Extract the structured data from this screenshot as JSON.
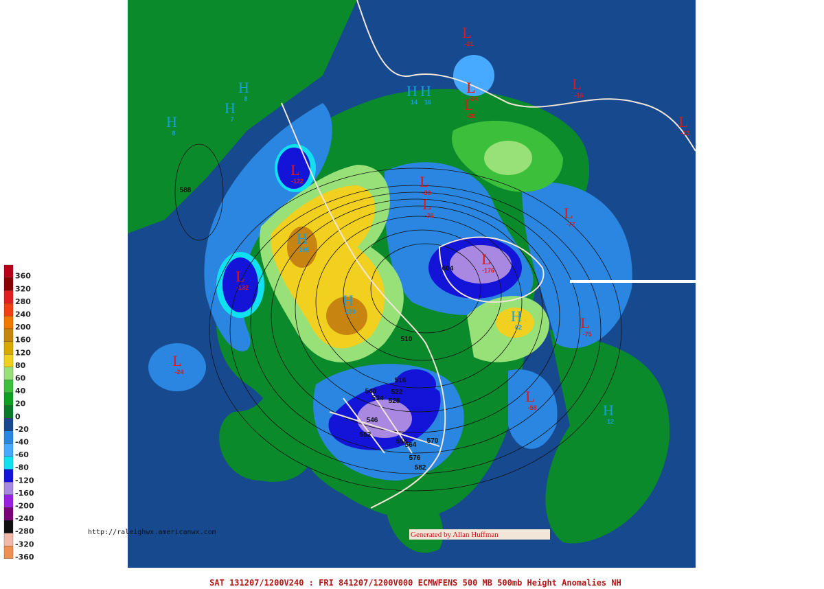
{
  "title": "SAT 131207/1200V240 : FRI 841207/1200V000  ECMWFENS  500 MB 500mb Height Anomalies NH",
  "source_url": "http://raleighwx.americanwx.com",
  "credit": "Generated by Allan Huffman",
  "legend": {
    "items": [
      {
        "value": 360,
        "color": "#b80018"
      },
      {
        "value": 320,
        "color": "#880000"
      },
      {
        "value": 280,
        "color": "#e02020"
      },
      {
        "value": 240,
        "color": "#f04010"
      },
      {
        "value": 200,
        "color": "#f07a00"
      },
      {
        "value": 160,
        "color": "#c88410"
      },
      {
        "value": 120,
        "color": "#d8a800"
      },
      {
        "value": 80,
        "color": "#f2d020"
      },
      {
        "value": 60,
        "color": "#98e078"
      },
      {
        "value": 40,
        "color": "#3cc03c"
      },
      {
        "value": 20,
        "color": "#10a020"
      },
      {
        "value": 0,
        "color": "#0a7a2a"
      },
      {
        "value": -20,
        "color": "#17498e"
      },
      {
        "value": -40,
        "color": "#2a86e0"
      },
      {
        "value": -60,
        "color": "#48aaff"
      },
      {
        "value": -80,
        "color": "#10e0f0"
      },
      {
        "value": -120,
        "color": "#1414d8"
      },
      {
        "value": -160,
        "color": "#a888e0"
      },
      {
        "value": -200,
        "color": "#9a20e0"
      },
      {
        "value": -240,
        "color": "#7a007a"
      },
      {
        "value": -280,
        "color": "#101010"
      },
      {
        "value": -320,
        "color": "#f2b8a8"
      },
      {
        "value": -360,
        "color": "#f09050"
      }
    ]
  },
  "centers": [
    {
      "type": "L",
      "value": -21
    },
    {
      "type": "L",
      "value": -34
    },
    {
      "type": "L",
      "value": -20
    },
    {
      "type": "L",
      "value": -16
    },
    {
      "type": "L",
      "value": -13
    },
    {
      "type": "L",
      "value": -122
    },
    {
      "type": "L",
      "value": -30
    },
    {
      "type": "L",
      "value": -36
    },
    {
      "type": "L",
      "value": -77
    },
    {
      "type": "L",
      "value": -176
    },
    {
      "type": "L",
      "value": -132
    },
    {
      "type": "L",
      "value": -75
    },
    {
      "type": "L",
      "value": -24
    },
    {
      "type": "L",
      "value": -58
    },
    {
      "type": "H",
      "value": 8
    },
    {
      "type": "H",
      "value": 8
    },
    {
      "type": "H",
      "value": 7
    },
    {
      "type": "H",
      "value": 14
    },
    {
      "type": "H",
      "value": 16
    },
    {
      "type": "H",
      "value": 195
    },
    {
      "type": "H",
      "value": 230
    },
    {
      "type": "H",
      "value": 62
    },
    {
      "type": "H",
      "value": 12
    }
  ],
  "contour_labels": [
    588,
    604,
    510,
    516,
    522,
    528,
    534,
    540,
    546,
    552,
    558,
    564,
    570,
    576,
    582
  ]
}
